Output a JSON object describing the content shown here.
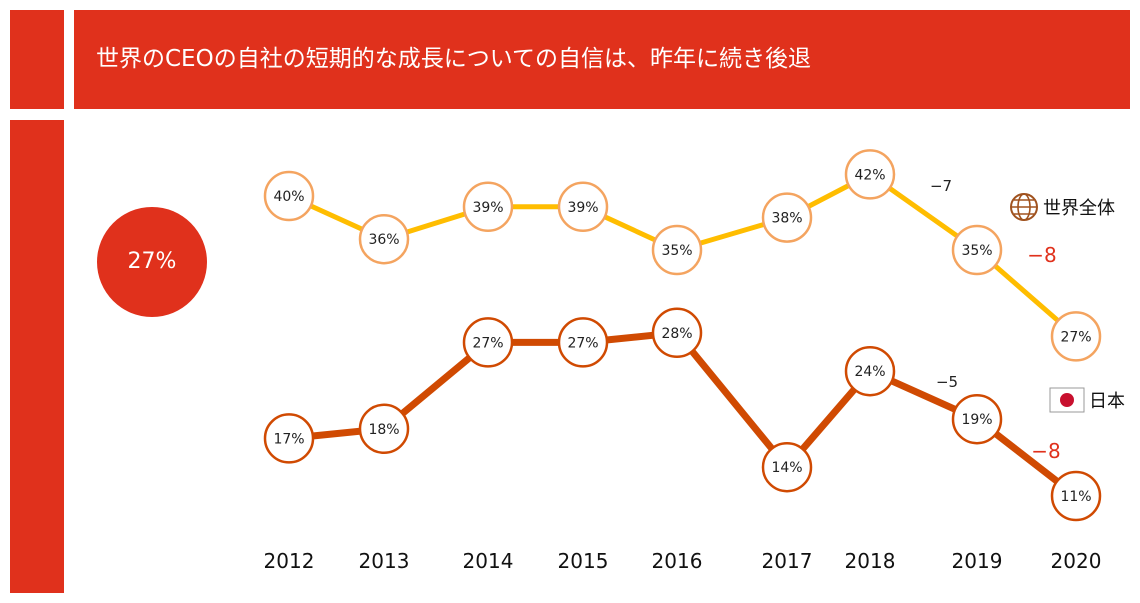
{
  "header": {
    "title": "世界のCEOの自社の短期的な成長についての自信は、昨年に続き後退"
  },
  "summary": {
    "value": "27%"
  },
  "colors": {
    "accent": "#e0311c",
    "world_line": "#ffbd00",
    "world_marker": "#f4a460",
    "japan_line": "#d04a02"
  },
  "chart_data": {
    "type": "line",
    "categories": [
      "2012",
      "2013",
      "2014",
      "2015",
      "2016",
      "2017",
      "2018",
      "2019",
      "2020"
    ],
    "ylim": [
      8,
      45
    ],
    "series": [
      {
        "key": "world",
        "name": "世界全体",
        "values": [
          40,
          36,
          39,
          39,
          35,
          38,
          42,
          35,
          27
        ],
        "labels": [
          "40%",
          "36%",
          "39%",
          "39%",
          "35%",
          "38%",
          "42%",
          "35%",
          "27%"
        ],
        "legend_icon": "globe-icon"
      },
      {
        "key": "japan",
        "name": "日本",
        "values": [
          17,
          18,
          27,
          27,
          28,
          14,
          24,
          19,
          11
        ],
        "labels": [
          "17%",
          "18%",
          "27%",
          "27%",
          "28%",
          "14%",
          "24%",
          "19%",
          "11%"
        ],
        "legend_icon": "japan-flag-icon"
      }
    ],
    "annotations": [
      {
        "series": "world",
        "text": "−7"
      },
      {
        "series": "world",
        "text": "−8",
        "emphasis": true
      },
      {
        "series": "japan",
        "text": "−5"
      },
      {
        "series": "japan",
        "text": "−8",
        "emphasis": true
      }
    ]
  }
}
